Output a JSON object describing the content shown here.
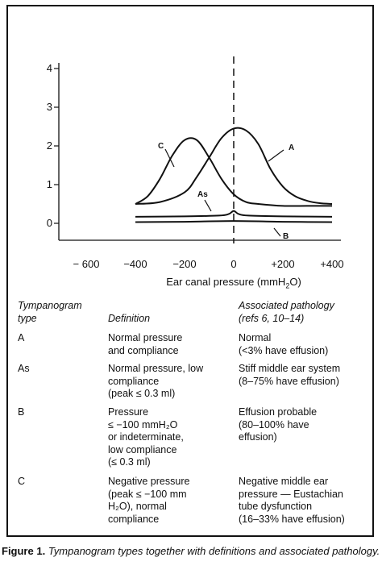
{
  "chart_data": {
    "type": "line",
    "title": "",
    "xlabel": "Ear canal pressure (mmH2O)",
    "xlabel_sub": "2",
    "xlabel_tail": "O)",
    "xlabel_head": "Ear canal pressure (mmH",
    "ylabel": "",
    "xlim": [
      -600,
      400
    ],
    "ylim": [
      0,
      4
    ],
    "x_ticks": [
      "− 600",
      "−400",
      "−200",
      "0",
      "+200",
      "+400"
    ],
    "x_tick_values": [
      -600,
      -400,
      -200,
      0,
      200,
      400
    ],
    "y_ticks": [
      "0",
      "1",
      "2",
      "3",
      "4"
    ],
    "y_tick_values": [
      0,
      1,
      2,
      3,
      4
    ],
    "grid": false,
    "reference_line_x": 0,
    "series": [
      {
        "name": "A",
        "x": [
          -400,
          -300,
          -200,
          -150,
          -100,
          -50,
          0,
          50,
          100,
          150,
          200,
          250,
          300,
          350,
          400
        ],
        "y": [
          0.5,
          0.55,
          0.8,
          1.2,
          1.7,
          2.2,
          2.45,
          2.4,
          2.05,
          1.4,
          0.95,
          0.7,
          0.58,
          0.52,
          0.5
        ]
      },
      {
        "name": "C",
        "x": [
          -400,
          -350,
          -300,
          -250,
          -200,
          -150,
          -100,
          -50,
          0,
          50,
          100,
          200,
          300,
          400
        ],
        "y": [
          0.5,
          0.7,
          1.15,
          1.75,
          2.15,
          2.15,
          1.7,
          1.15,
          0.75,
          0.55,
          0.5,
          0.45,
          0.45,
          0.45
        ]
      },
      {
        "name": "As",
        "x": [
          -400,
          -200,
          -60,
          -20,
          0,
          20,
          60,
          200,
          400
        ],
        "y": [
          0.17,
          0.18,
          0.2,
          0.24,
          0.32,
          0.24,
          0.2,
          0.18,
          0.17
        ]
      },
      {
        "name": "B",
        "x": [
          -400,
          -200,
          0,
          200,
          400
        ],
        "y": [
          0.03,
          0.04,
          0.06,
          0.04,
          0.03
        ]
      }
    ],
    "annotations": [
      "A",
      "C",
      "As",
      "B"
    ]
  },
  "table": {
    "headers": {
      "type": "Tympanogram\ntype",
      "definition": "Definition",
      "pathology": "Associated pathology\n(refs 6, 10–14)"
    },
    "rows": [
      {
        "type": "A",
        "definition": "Normal pressure\n  and compliance",
        "pathology": "Normal\n  (<3% have effusion)"
      },
      {
        "type": "As",
        "definition": "Normal pressure, low\n  compliance\n  (peak ≤ 0.3 ml)",
        "pathology": "Stiff middle ear system\n  (8–75% have effusion)"
      },
      {
        "type": "B",
        "definition": "Pressure\n  ≤ −100 mmH₂O\n  or indeterminate,\n  low compliance\n  (≤ 0.3 ml)",
        "pathology": "Effusion probable\n  (80–100% have\n  effusion)"
      },
      {
        "type": "C",
        "definition": "Negative pressure\n  (peak ≤ −100 mm\n  H₂O), normal\n  compliance",
        "pathology": "Negative middle ear\n  pressure — Eustachian\n  tube dysfunction\n  (16–33% have effusion)"
      }
    ]
  },
  "caption": {
    "label": "Figure 1.",
    "text": "Tympanogram types together with definitions and associated pathology."
  }
}
